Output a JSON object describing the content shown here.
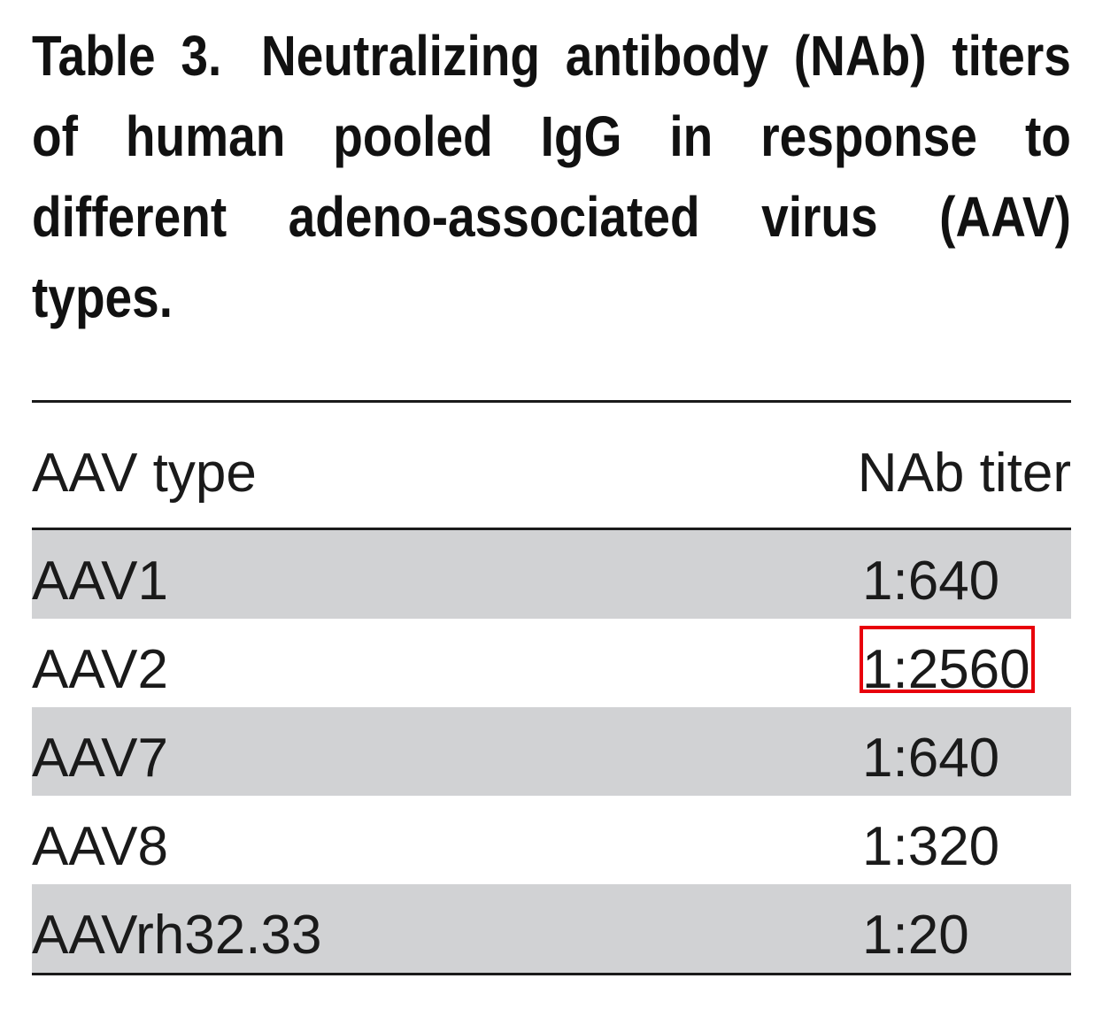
{
  "caption": {
    "label": "Table 3.",
    "text": "Neutralizing antibody (NAb) titers of human pooled IgG in response to different adeno-associated virus (AAV) types."
  },
  "table": {
    "headers": {
      "type": "AAV type",
      "titer": "NAb titer"
    },
    "rows": [
      {
        "type": "AAV1",
        "titer": "1:640"
      },
      {
        "type": "AAV2",
        "titer": "1:2560"
      },
      {
        "type": "AAV7",
        "titer": "1:640"
      },
      {
        "type": "AAV8",
        "titer": "1:320"
      },
      {
        "type": "AAVrh32.33",
        "titer": "1:20"
      }
    ],
    "highlighted_row_index": 1,
    "highlight_color": "#e8000b",
    "shaded_row_color": "#d1d2d4"
  }
}
